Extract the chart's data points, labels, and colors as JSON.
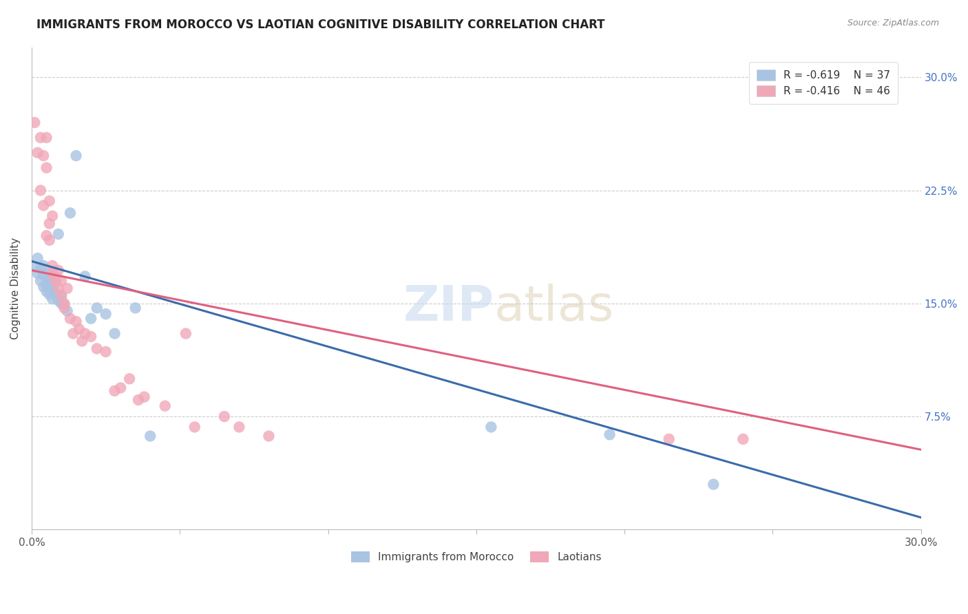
{
  "title": "IMMIGRANTS FROM MOROCCO VS LAOTIAN COGNITIVE DISABILITY CORRELATION CHART",
  "source": "Source: ZipAtlas.com",
  "ylabel": "Cognitive Disability",
  "xlim": [
    0.0,
    0.3
  ],
  "ylim": [
    0.0,
    0.32
  ],
  "ytick_values": [
    0.0,
    0.075,
    0.15,
    0.225,
    0.3
  ],
  "xtick_values": [
    0.0,
    0.05,
    0.1,
    0.15,
    0.2,
    0.25,
    0.3
  ],
  "watermark_zip": "ZIP",
  "watermark_atlas": "atlas",
  "legend_blue_r": "R = -0.619",
  "legend_blue_n": "N = 37",
  "legend_pink_r": "R = -0.416",
  "legend_pink_n": "N = 46",
  "blue_label": "Immigrants from Morocco",
  "pink_label": "Laotians",
  "blue_color": "#a8c4e2",
  "pink_color": "#f0a8b8",
  "blue_line_color": "#3a6bab",
  "pink_line_color": "#e06080",
  "blue_line": [
    [
      0.0,
      0.178
    ],
    [
      0.3,
      0.008
    ]
  ],
  "pink_line": [
    [
      0.0,
      0.172
    ],
    [
      0.3,
      0.053
    ]
  ],
  "blue_points": [
    [
      0.001,
      0.174
    ],
    [
      0.002,
      0.18
    ],
    [
      0.002,
      0.17
    ],
    [
      0.003,
      0.173
    ],
    [
      0.003,
      0.165
    ],
    [
      0.004,
      0.169
    ],
    [
      0.004,
      0.161
    ],
    [
      0.004,
      0.175
    ],
    [
      0.005,
      0.167
    ],
    [
      0.005,
      0.162
    ],
    [
      0.005,
      0.158
    ],
    [
      0.006,
      0.17
    ],
    [
      0.006,
      0.163
    ],
    [
      0.006,
      0.156
    ],
    [
      0.007,
      0.168
    ],
    [
      0.007,
      0.16
    ],
    [
      0.007,
      0.153
    ],
    [
      0.008,
      0.164
    ],
    [
      0.008,
      0.157
    ],
    [
      0.009,
      0.152
    ],
    [
      0.009,
      0.196
    ],
    [
      0.01,
      0.15
    ],
    [
      0.01,
      0.155
    ],
    [
      0.011,
      0.149
    ],
    [
      0.012,
      0.145
    ],
    [
      0.013,
      0.21
    ],
    [
      0.015,
      0.248
    ],
    [
      0.018,
      0.168
    ],
    [
      0.02,
      0.14
    ],
    [
      0.022,
      0.147
    ],
    [
      0.025,
      0.143
    ],
    [
      0.028,
      0.13
    ],
    [
      0.035,
      0.147
    ],
    [
      0.04,
      0.062
    ],
    [
      0.155,
      0.068
    ],
    [
      0.195,
      0.063
    ],
    [
      0.23,
      0.03
    ]
  ],
  "pink_points": [
    [
      0.001,
      0.27
    ],
    [
      0.002,
      0.25
    ],
    [
      0.003,
      0.26
    ],
    [
      0.003,
      0.225
    ],
    [
      0.004,
      0.248
    ],
    [
      0.004,
      0.215
    ],
    [
      0.005,
      0.26
    ],
    [
      0.005,
      0.24
    ],
    [
      0.005,
      0.195
    ],
    [
      0.006,
      0.218
    ],
    [
      0.006,
      0.203
    ],
    [
      0.006,
      0.192
    ],
    [
      0.007,
      0.208
    ],
    [
      0.007,
      0.175
    ],
    [
      0.007,
      0.17
    ],
    [
      0.008,
      0.165
    ],
    [
      0.008,
      0.168
    ],
    [
      0.009,
      0.16
    ],
    [
      0.009,
      0.172
    ],
    [
      0.01,
      0.165
    ],
    [
      0.01,
      0.155
    ],
    [
      0.011,
      0.15
    ],
    [
      0.011,
      0.147
    ],
    [
      0.012,
      0.16
    ],
    [
      0.013,
      0.14
    ],
    [
      0.014,
      0.13
    ],
    [
      0.015,
      0.138
    ],
    [
      0.016,
      0.133
    ],
    [
      0.017,
      0.125
    ],
    [
      0.018,
      0.13
    ],
    [
      0.02,
      0.128
    ],
    [
      0.022,
      0.12
    ],
    [
      0.025,
      0.118
    ],
    [
      0.028,
      0.092
    ],
    [
      0.03,
      0.094
    ],
    [
      0.033,
      0.1
    ],
    [
      0.036,
      0.086
    ],
    [
      0.038,
      0.088
    ],
    [
      0.045,
      0.082
    ],
    [
      0.052,
      0.13
    ],
    [
      0.055,
      0.068
    ],
    [
      0.065,
      0.075
    ],
    [
      0.07,
      0.068
    ],
    [
      0.08,
      0.062
    ],
    [
      0.215,
      0.06
    ],
    [
      0.24,
      0.06
    ]
  ]
}
